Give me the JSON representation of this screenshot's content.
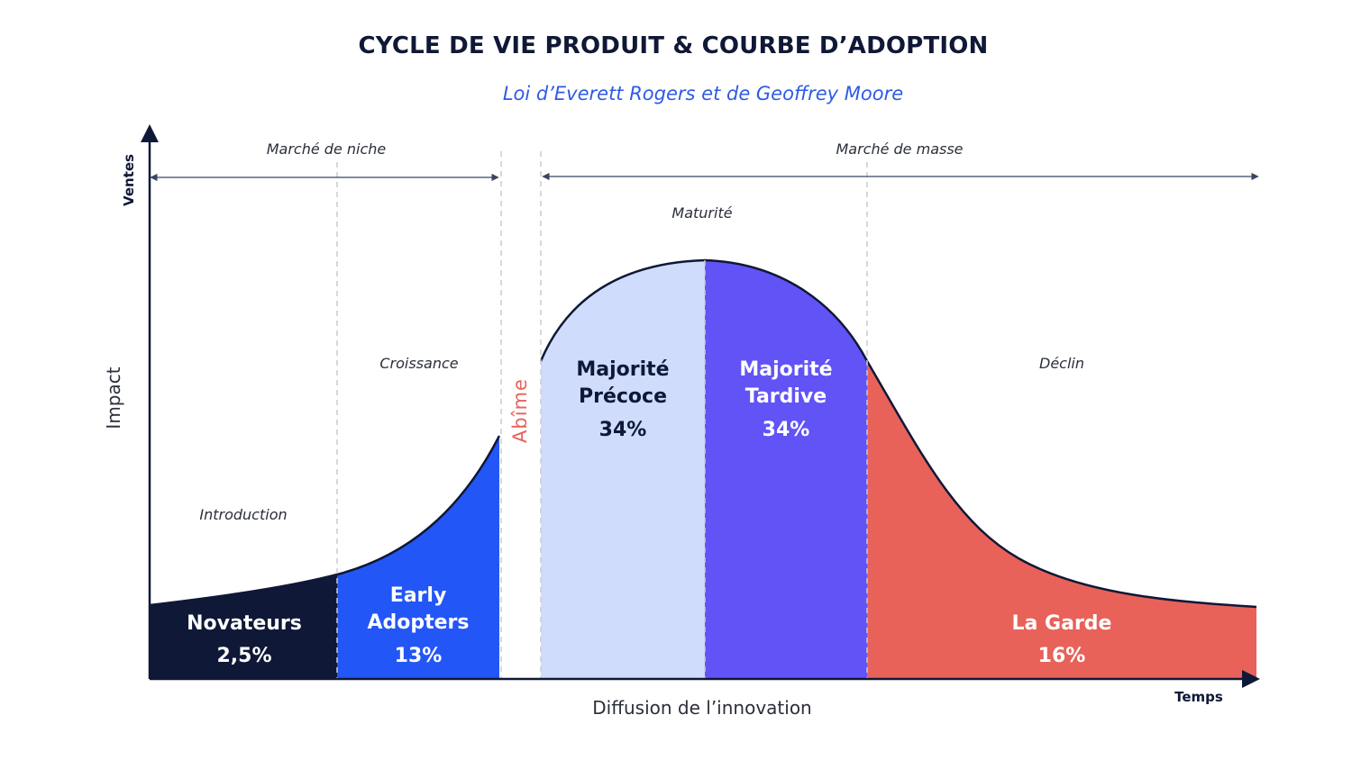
{
  "title": "CYCLE DE VIE PRODUIT & COURBE D’ADOPTION",
  "subtitle": "Loi d’Everett Rogers et de Geoffrey Moore",
  "axes": {
    "y_top": "Ventes",
    "y_side": "Impact",
    "x_center": "Diffusion de l’innovation",
    "x_end": "Temps"
  },
  "markets": {
    "niche": "Marché de niche",
    "masse": "Marché de masse"
  },
  "phases": {
    "introduction": "Introduction",
    "croissance": "Croissance",
    "maturite": "Maturité",
    "declin": "Déclin"
  },
  "chasm": "Abîme",
  "segments": [
    {
      "line1": "Novateurs",
      "line2": "",
      "pct": "2,5%",
      "color": "#0f1836",
      "text_color": "#ffffff"
    },
    {
      "line1": "Early",
      "line2": "Adopters",
      "pct": "13%",
      "color": "#2356f6",
      "text_color": "#ffffff"
    },
    {
      "line1": "Majorité",
      "line2": "Précoce",
      "pct": "34%",
      "color": "#cfdcfb",
      "text_color": "#0f1836"
    },
    {
      "line1": "Majorité",
      "line2": "Tardive",
      "pct": "34%",
      "color": "#6253f6",
      "text_color": "#ffffff"
    },
    {
      "line1": "La Garde",
      "line2": "",
      "pct": "16%",
      "color": "#e8625a",
      "text_color": "#ffffff"
    }
  ]
}
